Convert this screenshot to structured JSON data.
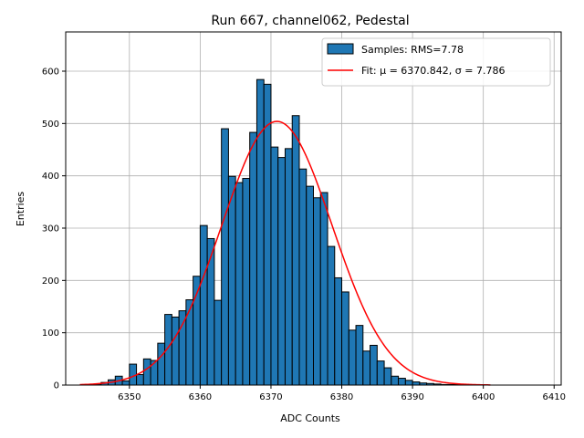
{
  "chart_data": {
    "type": "bar",
    "title": "Run 667, channel062, Pedestal",
    "xlabel": "ADC Counts",
    "ylabel": "Entries",
    "xlim": [
      6341,
      6411
    ],
    "ylim": [
      0,
      675
    ],
    "xticks": [
      6350,
      6360,
      6370,
      6380,
      6390,
      6400,
      6410
    ],
    "yticks": [
      0,
      100,
      200,
      300,
      400,
      500,
      600
    ],
    "grid": true,
    "legend_position": "top-right",
    "bar_color": "#1f77b4",
    "bar_edge_color": "#000000",
    "fit_color": "#ff0000",
    "bins": {
      "start": 6344,
      "width": 1,
      "counts": [
        0,
        2,
        5,
        10,
        17,
        8,
        40,
        20,
        50,
        47,
        80,
        135,
        130,
        142,
        163,
        208,
        305,
        280,
        162,
        490,
        399,
        387,
        395,
        483,
        584,
        575,
        455,
        435,
        452,
        515,
        413,
        380,
        358,
        368,
        265,
        205,
        178,
        105,
        114,
        65,
        76,
        46,
        33,
        17,
        13,
        9,
        6,
        4,
        3,
        2,
        1,
        1,
        1,
        0,
        0,
        0,
        0,
        0,
        0,
        0,
        0,
        0,
        0
      ]
    },
    "series": [
      {
        "name": "Samples: RMS=7.78",
        "kind": "histogram"
      },
      {
        "name": "Fit: μ = 6370.842, σ = 7.786",
        "kind": "line",
        "mu": 6370.842,
        "sigma": 7.786,
        "amplitude": 504,
        "x_range": [
          6343,
          6401
        ]
      }
    ]
  }
}
